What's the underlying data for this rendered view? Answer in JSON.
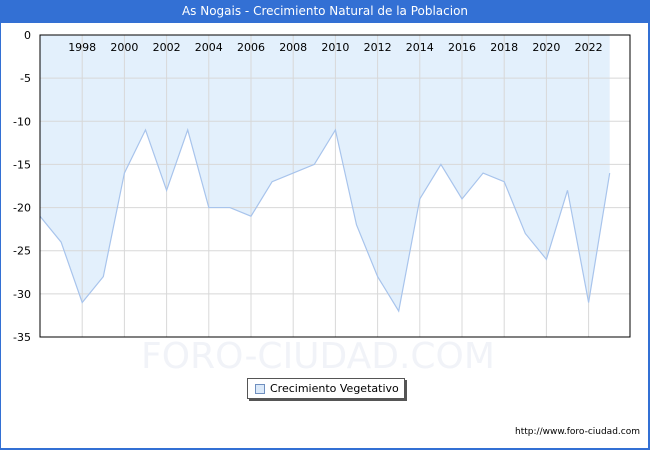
{
  "header": {
    "title": "As Nogais - Crecimiento Natural de la Poblacion"
  },
  "legend": {
    "label": "Crecimiento Vegetativo",
    "swatch_color": "#dbe9f9"
  },
  "footer": {
    "url": "http://www.foro-ciudad.com"
  },
  "watermark": "FORO-CIUDAD.COM",
  "colors": {
    "header_bg": "#3370d4",
    "fill": "#e3f0fc",
    "line": "#a8c4ec",
    "grid": "#d8d8d8"
  },
  "chart_data": {
    "type": "area",
    "title": "As Nogais - Crecimiento Natural de la Poblacion",
    "xlabel": "",
    "ylabel": "",
    "x": [
      1996,
      1997,
      1998,
      1999,
      2000,
      2001,
      2002,
      2003,
      2004,
      2005,
      2006,
      2007,
      2008,
      2009,
      2010,
      2011,
      2012,
      2013,
      2014,
      2015,
      2016,
      2017,
      2018,
      2019,
      2020,
      2021,
      2022,
      2023
    ],
    "series": [
      {
        "name": "Crecimiento Vegetativo",
        "values": [
          -21,
          -24,
          -31,
          -28,
          -16,
          -11,
          -18,
          -11,
          -20,
          -20,
          -21,
          -17,
          -16,
          -15,
          -11,
          -22,
          -28,
          -32,
          -19,
          -15,
          -19,
          -16,
          -17,
          -23,
          -26,
          -18,
          -31,
          -16
        ]
      }
    ],
    "x_tick_labels": [
      "1998",
      "2000",
      "2002",
      "2004",
      "2006",
      "2008",
      "2010",
      "2012",
      "2014",
      "2016",
      "2018",
      "2020",
      "2022"
    ],
    "y_tick_labels": [
      "0",
      "-5",
      "-10",
      "-15",
      "-20",
      "-25",
      "-30",
      "-35"
    ],
    "ylim": [
      -35,
      0
    ],
    "grid": true,
    "legend_position": "bottom-center"
  }
}
